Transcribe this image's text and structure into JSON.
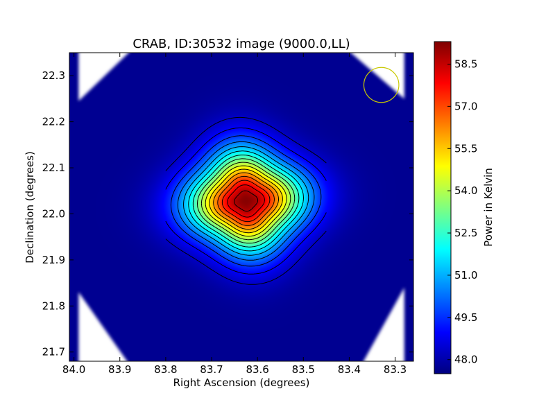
{
  "chart_data": {
    "type": "heatmap",
    "title": "CRAB, ID:30532 image (9000.0,LL)",
    "xlabel": "Right Ascension (degrees)",
    "ylabel": "Declination (degrees)",
    "colorbar_label": "Power in Kelvin",
    "colormap": "jet",
    "xlim": [
      84.01,
      83.26
    ],
    "ylim": [
      21.68,
      22.35
    ],
    "x_ticks": [
      84.0,
      83.9,
      83.8,
      83.7,
      83.6,
      83.5,
      83.4,
      83.3
    ],
    "x_tick_labels": [
      "84.0",
      "83.9",
      "83.8",
      "83.7",
      "83.6",
      "83.5",
      "83.4",
      "83.3"
    ],
    "y_ticks": [
      21.7,
      21.8,
      21.9,
      22.0,
      22.1,
      22.2,
      22.3
    ],
    "y_tick_labels": [
      "21.7",
      "21.8",
      "21.9",
      "22.0",
      "22.1",
      "22.2",
      "22.3"
    ],
    "colorbar_range": [
      47.5,
      59.3
    ],
    "colorbar_ticks": [
      48.0,
      49.5,
      51.0,
      52.5,
      54.0,
      55.5,
      57.0,
      58.5
    ],
    "colorbar_tick_labels": [
      "48.0",
      "49.5",
      "51.0",
      "52.5",
      "54.0",
      "55.5",
      "57.0",
      "58.5"
    ],
    "background_level": 47.7,
    "source": {
      "ra": 83.625,
      "dec": 22.028,
      "peak": 59.2,
      "sigma_ra_deg": 0.075,
      "sigma_dec_deg": 0.07
    },
    "contour_levels": [
      48.3,
      48.9,
      49.6,
      50.3,
      51.0,
      51.7,
      52.4,
      53.1,
      53.8,
      54.5,
      55.2,
      55.9,
      56.6,
      57.3,
      58.0,
      58.7
    ],
    "beam": {
      "ra": 83.33,
      "dec": 22.28,
      "radius_deg": 0.038,
      "color": "#c8c800"
    },
    "colors": {
      "masked": "#ffffff",
      "contour": "#000000",
      "frame": "#000000"
    }
  }
}
